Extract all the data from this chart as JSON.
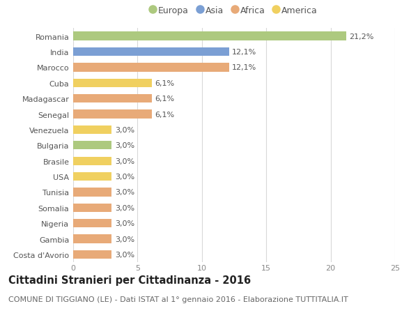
{
  "categories": [
    "Romania",
    "India",
    "Marocco",
    "Cuba",
    "Madagascar",
    "Senegal",
    "Venezuela",
    "Bulgaria",
    "Brasile",
    "USA",
    "Tunisia",
    "Somalia",
    "Nigeria",
    "Gambia",
    "Costa d'Avorio"
  ],
  "values": [
    21.2,
    12.1,
    12.1,
    6.1,
    6.1,
    6.1,
    3.0,
    3.0,
    3.0,
    3.0,
    3.0,
    3.0,
    3.0,
    3.0,
    3.0
  ],
  "labels": [
    "21,2%",
    "12,1%",
    "12,1%",
    "6,1%",
    "6,1%",
    "6,1%",
    "3,0%",
    "3,0%",
    "3,0%",
    "3,0%",
    "3,0%",
    "3,0%",
    "3,0%",
    "3,0%",
    "3,0%"
  ],
  "continents": [
    "Europa",
    "Asia",
    "Africa",
    "America",
    "Africa",
    "Africa",
    "America",
    "Europa",
    "America",
    "America",
    "Africa",
    "Africa",
    "Africa",
    "Africa",
    "Africa"
  ],
  "colors": {
    "Europa": "#adc97f",
    "Asia": "#7b9fd4",
    "Africa": "#e8aa78",
    "America": "#f0d060"
  },
  "legend_order": [
    "Europa",
    "Asia",
    "Africa",
    "America"
  ],
  "xlim": [
    0,
    25
  ],
  "xticks": [
    0,
    5,
    10,
    15,
    20,
    25
  ],
  "title": "Cittadini Stranieri per Cittadinanza - 2016",
  "subtitle": "COMUNE DI TIGGIANO (LE) - Dati ISTAT al 1° gennaio 2016 - Elaborazione TUTTITALIA.IT",
  "background_color": "#ffffff",
  "grid_color": "#d8d8d8",
  "bar_height": 0.55,
  "label_fontsize": 8,
  "tick_fontsize": 8,
  "title_fontsize": 10.5,
  "subtitle_fontsize": 8
}
